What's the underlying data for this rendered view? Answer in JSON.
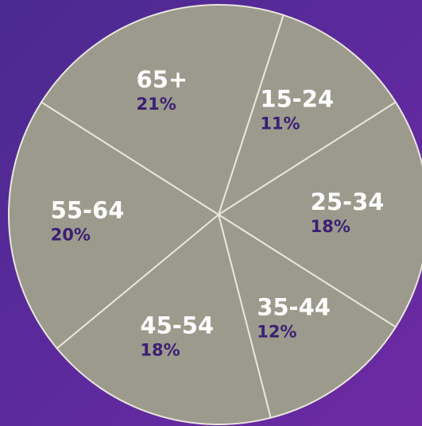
{
  "chart_data": {
    "type": "pie",
    "categories": [
      "15-24",
      "25-34",
      "35-44",
      "45-54",
      "55-64",
      "65+"
    ],
    "values": [
      11,
      18,
      12,
      18,
      20,
      21
    ],
    "value_labels": [
      "11%",
      "18%",
      "12%",
      "18%",
      "20%",
      "21%"
    ],
    "color": "#9b9a8d"
  }
}
